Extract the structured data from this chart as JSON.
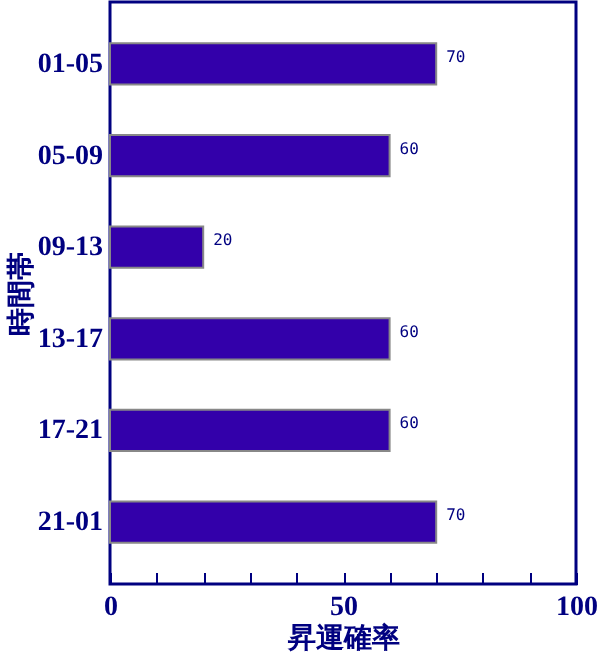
{
  "chart_data": {
    "type": "bar",
    "orientation": "horizontal",
    "xlabel": "昇運確率",
    "ylabel": "時間帯",
    "categories": [
      "01-05",
      "05-09",
      "09-13",
      "13-17",
      "17-21",
      "21-01"
    ],
    "values": [
      70,
      60,
      20,
      60,
      60,
      70
    ],
    "color": "#3300aa",
    "data_labels": true,
    "grid": false,
    "xlim": [
      0,
      100
    ],
    "xticks": [
      0,
      {
        "value": 10,
        "label": null
      },
      {
        "value": 20,
        "label": null
      },
      {
        "value": 30,
        "label": null
      },
      {
        "value": 40,
        "label": null
      },
      50,
      {
        "value": 60,
        "label": null
      },
      {
        "value": 70,
        "label": null
      },
      {
        "value": 80,
        "label": null
      },
      {
        "value": 90,
        "label": null
      },
      100
    ]
  }
}
